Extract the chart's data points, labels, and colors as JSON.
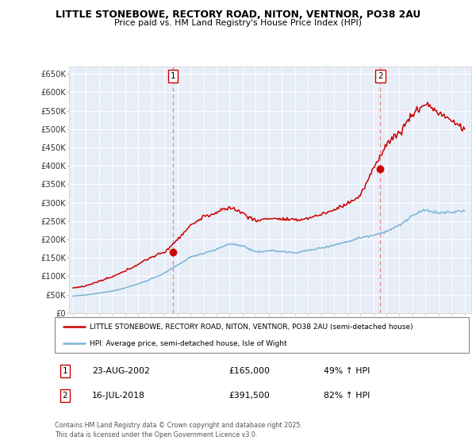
{
  "title": "LITTLE STONEBOWE, RECTORY ROAD, NITON, VENTNOR, PO38 2AU",
  "subtitle": "Price paid vs. HM Land Registry's House Price Index (HPI)",
  "legend_line1": "LITTLE STONEBOWE, RECTORY ROAD, NITON, VENTNOR, PO38 2AU (semi-detached house)",
  "legend_line2": "HPI: Average price, semi-detached house, Isle of Wight",
  "transaction1_date": "23-AUG-2002",
  "transaction1_price": "£165,000",
  "transaction1_hpi": "49% ↑ HPI",
  "transaction2_date": "16-JUL-2018",
  "transaction2_price": "£391,500",
  "transaction2_hpi": "82% ↑ HPI",
  "footer": "Contains HM Land Registry data © Crown copyright and database right 2025.\nThis data is licensed under the Open Government Licence v3.0.",
  "hpi_color": "#7ab4d8",
  "price_color": "#cc0000",
  "vline_color": "#e87878",
  "bg_color": "#e8eef8",
  "ylim": [
    0,
    670000
  ],
  "yticks": [
    0,
    50000,
    100000,
    150000,
    200000,
    250000,
    300000,
    350000,
    400000,
    450000,
    500000,
    550000,
    600000,
    650000
  ],
  "ytick_labels": [
    "£0",
    "£50K",
    "£100K",
    "£150K",
    "£200K",
    "£250K",
    "£300K",
    "£350K",
    "£400K",
    "£450K",
    "£500K",
    "£550K",
    "£600K",
    "£650K"
  ],
  "transaction1_x": 2002.65,
  "transaction2_x": 2018.54,
  "transaction1_y": 165000,
  "transaction2_y": 391500,
  "xmin": 1994.7,
  "xmax": 2025.5,
  "hpi_anchors_x": [
    1995,
    1996,
    1997,
    1998,
    1999,
    2000,
    2001,
    2002,
    2003,
    2004,
    2005,
    2006,
    2007,
    2008,
    2009,
    2010,
    2011,
    2012,
    2013,
    2014,
    2015,
    2016,
    2017,
    2018,
    2019,
    2020,
    2021,
    2022,
    2023,
    2024,
    2025
  ],
  "hpi_anchors_y": [
    46000,
    49000,
    54000,
    60000,
    68000,
    79000,
    93000,
    108000,
    130000,
    152000,
    163000,
    173000,
    188000,
    183000,
    165000,
    170000,
    167000,
    164000,
    170000,
    177000,
    185000,
    194000,
    205000,
    212000,
    222000,
    238000,
    265000,
    280000,
    272000,
    274000,
    278000
  ],
  "price_anchors_x": [
    1995,
    1996,
    1997,
    1998,
    1999,
    2000,
    2001,
    2002,
    2003,
    2004,
    2005,
    2006,
    2007,
    2008,
    2009,
    2010,
    2011,
    2012,
    2013,
    2014,
    2015,
    2016,
    2017,
    2018,
    2019,
    2020,
    2021,
    2022,
    2023,
    2024,
    2025
  ],
  "price_anchors_y": [
    68000,
    74000,
    86000,
    98000,
    114000,
    133000,
    152000,
    165000,
    200000,
    238000,
    262000,
    272000,
    288000,
    272000,
    250000,
    258000,
    255000,
    252000,
    258000,
    268000,
    280000,
    298000,
    318000,
    391500,
    460000,
    490000,
    540000,
    570000,
    545000,
    522000,
    500000
  ]
}
